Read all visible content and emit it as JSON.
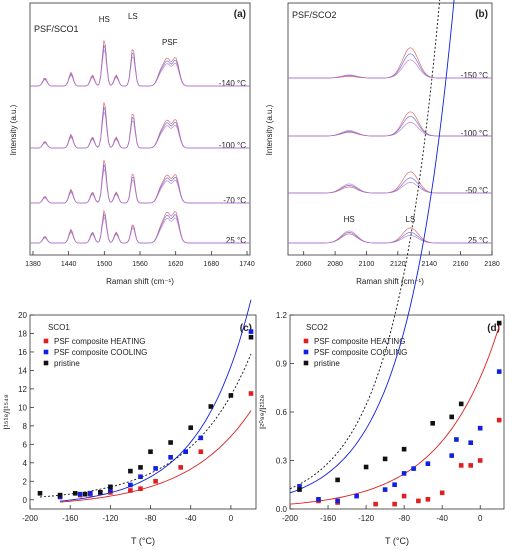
{
  "chart_data": [
    {
      "panel": "(a)",
      "type": "line",
      "title": "PSF/SCO1",
      "xlabel": "Raman shift (cm⁻¹)",
      "ylabel": "Intensity (a.u.)",
      "xlim": [
        1375,
        1745
      ],
      "xticks": [
        "1380",
        "1440",
        "1500",
        "1560",
        "1620",
        "1680",
        "1740"
      ],
      "xtick_values": [
        1380,
        1440,
        1500,
        1560,
        1620,
        1680,
        1740
      ],
      "annotations": [
        "HS",
        "LS",
        "PSF"
      ],
      "annotation_x": [
        1500,
        1548,
        1610
      ],
      "temperatures": [
        "-140 °C",
        "-100 °C",
        "-70 °C",
        "25 °C"
      ],
      "series_colors": [
        "#e05a5a",
        "#5a6ae0",
        "#c07ad0"
      ],
      "peaks_x": [
        1400,
        1444,
        1480,
        1500,
        1520,
        1548,
        1595,
        1606,
        1620
      ],
      "peaks_h": [
        [
          0.15,
          0.25,
          0.2,
          0.85,
          0.2,
          0.7,
          0.25,
          0.45,
          0.5
        ],
        [
          0.12,
          0.25,
          0.2,
          0.85,
          0.2,
          0.65,
          0.25,
          0.45,
          0.5
        ],
        [
          0.12,
          0.25,
          0.2,
          0.8,
          0.2,
          0.55,
          0.25,
          0.45,
          0.5
        ],
        [
          0.12,
          0.25,
          0.2,
          0.6,
          0.2,
          0.35,
          0.25,
          0.5,
          0.55
        ]
      ]
    },
    {
      "panel": "(b)",
      "type": "line",
      "title": "PSF/SCO2",
      "xlabel": "Raman shift (cm⁻¹)",
      "ylabel": "Intensity (a.u.)",
      "xlim": [
        2050,
        2180
      ],
      "xticks": [
        "2060",
        "2080",
        "2100",
        "2120",
        "2140",
        "2160",
        "2180"
      ],
      "xtick_values": [
        2060,
        2080,
        2100,
        2120,
        2140,
        2160,
        2180
      ],
      "annotations": [
        "HS",
        "LS"
      ],
      "annotation_x": [
        2089,
        2128
      ],
      "temperatures": [
        "-150 °C",
        "-100 °C",
        "-50 °C",
        "25 °C"
      ],
      "series_colors": [
        "#e05a5a",
        "#5a6ae0",
        "#c07ad0"
      ],
      "peaks_x": [
        2089,
        2128
      ],
      "peaks_h": [
        [
          [
            0.05,
            1.0
          ],
          [
            0.08,
            0.8
          ],
          [
            0.1,
            0.6
          ]
        ],
        [
          [
            0.12,
            0.8
          ],
          [
            0.15,
            0.65
          ],
          [
            0.18,
            0.45
          ]
        ],
        [
          [
            0.2,
            0.7
          ],
          [
            0.25,
            0.5
          ],
          [
            0.3,
            0.35
          ]
        ],
        [
          [
            0.3,
            0.5
          ],
          [
            0.35,
            0.35
          ],
          [
            0.4,
            0.25
          ]
        ]
      ]
    },
    {
      "panel": "(c)",
      "type": "scatter",
      "title": "SCO1",
      "xlabel": "T (°C)",
      "ylabel": "I¹⁵¹⁸/I¹⁵⁴⁸",
      "xlim": [
        -200,
        25
      ],
      "ylim": [
        -1,
        20
      ],
      "xticks": [
        "-200",
        "-160",
        "-120",
        "-80",
        "-40",
        "0"
      ],
      "xtick_values": [
        -200,
        -160,
        -120,
        -80,
        -40,
        0
      ],
      "yticks": [
        "0",
        "2",
        "4",
        "6",
        "8",
        "10",
        "12",
        "14",
        "16",
        "18",
        "20"
      ],
      "ytick_values": [
        0,
        2,
        4,
        6,
        8,
        10,
        12,
        14,
        16,
        18,
        20
      ],
      "series": [
        {
          "name": "PSF composite HEATING",
          "color": "#e02020",
          "x": [
            -170,
            -150,
            -140,
            -120,
            -100,
            -90,
            -75,
            -50,
            -30,
            20
          ],
          "y": [
            0.4,
            0.5,
            0.6,
            0.8,
            1.0,
            1.2,
            2.0,
            3.5,
            5.2,
            11.5
          ],
          "fit": {
            "a": 0.55,
            "b": -0.8,
            "c": 0.0155,
            "x0": -170
          }
        },
        {
          "name": "PSF composite COOLING",
          "color": "#1020e0",
          "x": [
            -170,
            -150,
            -140,
            -130,
            -120,
            -100,
            -90,
            -75,
            -60,
            -45,
            -30,
            20
          ],
          "y": [
            0.3,
            0.6,
            0.7,
            0.8,
            1.0,
            1.6,
            2.5,
            3.4,
            4.6,
            5.2,
            6.7,
            18.2
          ],
          "fit": {
            "a": 0.55,
            "b": -0.7,
            "c": 0.0195,
            "x0": -170
          }
        },
        {
          "name": "pristine",
          "color": "#111111",
          "x": [
            -190,
            -170,
            -155,
            -145,
            -130,
            -120,
            -100,
            -90,
            -80,
            -60,
            -40,
            -20,
            0,
            20
          ],
          "y": [
            0.7,
            0.5,
            0.7,
            0.6,
            0.8,
            1.4,
            3.1,
            3.5,
            5.2,
            6.2,
            7.8,
            10.1,
            11.3,
            17.6
          ],
          "fit": {
            "a": 0.5,
            "b": -0.2,
            "c": 0.0165,
            "x0": -190
          }
        }
      ],
      "legend": "top-left"
    },
    {
      "panel": "(d)",
      "type": "scatter",
      "title": "SCO2",
      "xlabel": "T (°C)",
      "ylabel": "I²⁰⁸⁹/I²¹²⁸",
      "xlim": [
        -200,
        25
      ],
      "ylim": [
        0,
        1.2
      ],
      "xticks": [
        "-200",
        "-160",
        "-120",
        "-80",
        "-40",
        "0"
      ],
      "xtick_values": [
        -200,
        -160,
        -120,
        -80,
        -40,
        0
      ],
      "yticks": [
        "0.0",
        "0.3",
        "0.6",
        "0.9",
        "1.2"
      ],
      "ytick_values": [
        0.0,
        0.3,
        0.6,
        0.9,
        1.2
      ],
      "series": [
        {
          "name": "PSF composite HEATING",
          "color": "#e02020",
          "x": [
            -170,
            -150,
            -110,
            -90,
            -80,
            -65,
            -55,
            -40,
            -20,
            -10,
            0,
            20
          ],
          "y": [
            0.05,
            0.04,
            0.03,
            0.03,
            0.08,
            0.05,
            0.06,
            0.1,
            0.27,
            0.27,
            0.3,
            0.55
          ],
          "fit": {
            "a": 0.03,
            "b": 0.0,
            "c": 0.0165,
            "x0": -200
          }
        },
        {
          "name": "PSF composite COOLING",
          "color": "#1020e0",
          "x": [
            -190,
            -170,
            -150,
            -130,
            -100,
            -90,
            -80,
            -70,
            -55,
            -30,
            -25,
            -10,
            0,
            20
          ],
          "y": [
            0.14,
            0.06,
            0.05,
            0.08,
            0.12,
            0.15,
            0.22,
            0.25,
            0.28,
            0.33,
            0.43,
            0.41,
            0.5,
            0.85
          ],
          "fit": {
            "a": 0.1,
            "b": 0.0,
            "c": 0.02,
            "x0": -200
          }
        },
        {
          "name": "pristine",
          "color": "#111111",
          "x": [
            -190,
            -150,
            -120,
            -100,
            -80,
            -50,
            -30,
            -20,
            20
          ],
          "y": [
            0.12,
            0.18,
            0.26,
            0.31,
            0.37,
            0.53,
            0.57,
            0.65,
            1.15
          ],
          "fit": {
            "a": 0.125,
            "b": 0.0,
            "c": 0.0205,
            "x0": -200
          }
        }
      ],
      "legend": "top-left"
    }
  ]
}
